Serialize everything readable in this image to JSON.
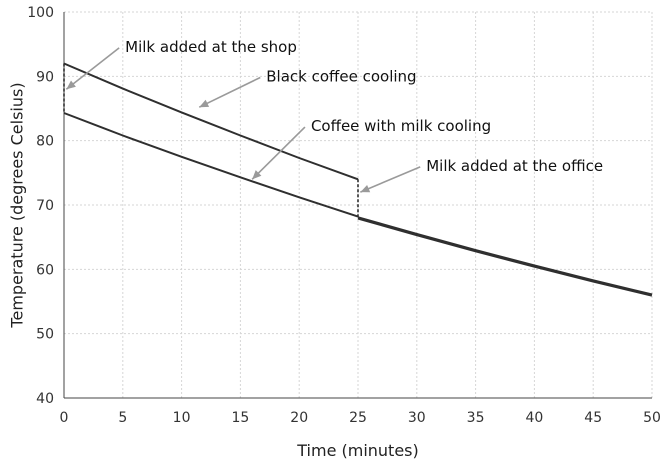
{
  "chart_data": {
    "type": "line",
    "xlabel": "Time (minutes)",
    "ylabel": "Temperature (degrees Celsius)",
    "xlim": [
      0,
      50
    ],
    "ylim": [
      40,
      100
    ],
    "xticks": [
      0,
      5,
      10,
      15,
      20,
      25,
      30,
      35,
      40,
      45,
      50
    ],
    "yticks": [
      40,
      50,
      60,
      70,
      80,
      90,
      100
    ],
    "grid": true,
    "series": [
      {
        "key": "black",
        "x": [
          0,
          5,
          10,
          15,
          20,
          25
        ],
        "y": [
          92.0,
          88.1,
          84.4,
          80.8,
          77.3,
          74.0
        ]
      },
      {
        "key": "milk_shop",
        "x": [
          0,
          5,
          10,
          15,
          20,
          25
        ],
        "y": [
          84.3,
          80.8,
          77.5,
          74.3,
          71.2,
          68.2
        ]
      },
      {
        "key": "milk_office",
        "x": [
          25,
          30,
          35,
          40,
          45,
          50
        ],
        "y": [
          68.0,
          65.4,
          62.9,
          60.5,
          58.2,
          56.0
        ]
      }
    ],
    "drops": [
      {
        "x": 0,
        "from": 92.0,
        "to": 84.3
      },
      {
        "x": 25,
        "from": 74.0,
        "to": 68.0
      }
    ],
    "annotations": [
      {
        "text": "Milk added at the shop",
        "point": [
          0.2,
          88
        ],
        "text_at": [
          5.2,
          93.8
        ]
      },
      {
        "text": "Black coffee cooling",
        "point": [
          11.5,
          85.2
        ],
        "text_at": [
          17.2,
          89.2
        ]
      },
      {
        "text": "Coffee with milk cooling",
        "point": [
          16,
          74
        ],
        "text_at": [
          21,
          81.5
        ]
      },
      {
        "text": "Milk added at the office",
        "point": [
          25.2,
          72
        ],
        "text_at": [
          30.8,
          75.3
        ]
      }
    ]
  }
}
